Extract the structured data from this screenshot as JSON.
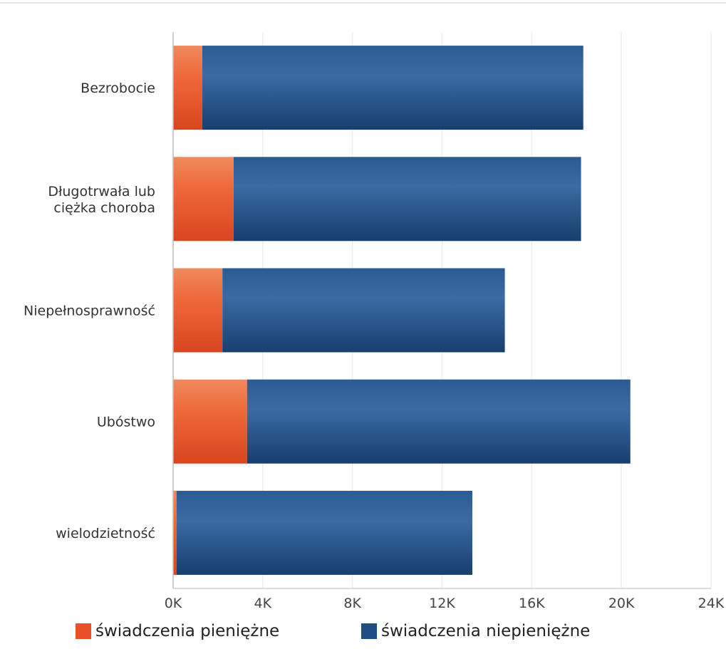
{
  "chart_data": {
    "type": "bar",
    "orientation": "horizontal",
    "stacked": true,
    "categories": [
      "Bezrobocie",
      "Długotrwała lub ciężka choroba",
      "Niepełnosprawność",
      "Ubóstwo",
      "wielodzietność"
    ],
    "category_lines": [
      [
        "Bezrobocie"
      ],
      [
        "Długotrwała lub",
        "ciężka choroba"
      ],
      [
        "Niepełnosprawność"
      ],
      [
        "Ubóstwo"
      ],
      [
        "wielodzietność"
      ]
    ],
    "series": [
      {
        "name": "świadczenia pieniężne",
        "color": "#e8502a",
        "values": [
          1300,
          2700,
          2200,
          3300,
          150
        ]
      },
      {
        "name": "świadczenia niepieniężne",
        "color": "#1f4e84",
        "values": [
          17000,
          15500,
          12600,
          17100,
          13200
        ]
      }
    ],
    "xlim": [
      0,
      24000
    ],
    "x_ticks": [
      0,
      4000,
      8000,
      12000,
      16000,
      20000,
      24000
    ],
    "x_tick_labels": [
      "0K",
      "4K",
      "8K",
      "12K",
      "16K",
      "20K",
      "24K"
    ],
    "grid": true,
    "legend_position": "bottom"
  },
  "legend": {
    "items": [
      {
        "label": "świadczenia pieniężne",
        "color": "#e8502a"
      },
      {
        "label": "świadczenia niepieniężne",
        "color": "#1f4e84"
      }
    ]
  }
}
